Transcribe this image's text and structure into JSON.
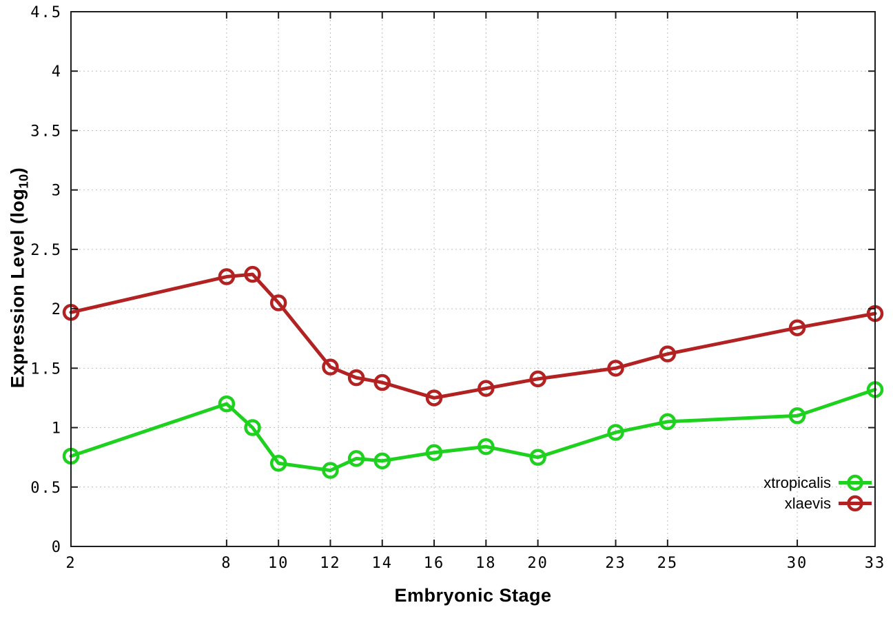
{
  "chart_data": {
    "type": "line",
    "title": "",
    "xlabel": "Embryonic Stage",
    "ylabel": "Expression Level (log10)",
    "ylabel_parts": {
      "pre": "Expression Level (log",
      "sub": "10",
      "post": ")"
    },
    "xlim": [
      2,
      33
    ],
    "ylim": [
      0,
      4.5
    ],
    "grid": true,
    "grid_style": "dotted",
    "legend_position": "bottom-right",
    "x_ticks": [
      2,
      8,
      10,
      12,
      14,
      16,
      18,
      20,
      23,
      25,
      30,
      33
    ],
    "x_tick_labels": [
      "2",
      "8",
      "10",
      "12",
      "14",
      "16",
      "18",
      "20",
      "23",
      "25",
      "30",
      "33"
    ],
    "y_ticks": [
      0,
      0.5,
      1,
      1.5,
      2,
      2.5,
      3,
      3.5,
      4,
      4.5
    ],
    "y_tick_labels": [
      "0",
      "0.5",
      "1",
      "1.5",
      "2",
      "2.5",
      "3",
      "3.5",
      "4",
      "4.5"
    ],
    "x": [
      2,
      8,
      9,
      10,
      12,
      13,
      14,
      16,
      18,
      20,
      23,
      25,
      30,
      33
    ],
    "series": [
      {
        "name": "xtropicalis",
        "color": "#1fd11f",
        "marker": "open-circle",
        "values": [
          0.76,
          1.2,
          1.0,
          0.7,
          0.64,
          0.74,
          0.72,
          0.79,
          0.84,
          0.75,
          0.96,
          1.05,
          1.1,
          1.32
        ]
      },
      {
        "name": "xlaevis",
        "color": "#b22222",
        "marker": "open-circle",
        "values": [
          1.97,
          2.27,
          2.29,
          2.05,
          1.51,
          1.42,
          1.38,
          1.25,
          1.33,
          1.41,
          1.5,
          1.62,
          1.84,
          1.96
        ]
      }
    ],
    "colors": {
      "background": "#ffffff",
      "axis": "#1c1c1c",
      "grid": "#bdbdbd",
      "text": "#000000"
    }
  }
}
